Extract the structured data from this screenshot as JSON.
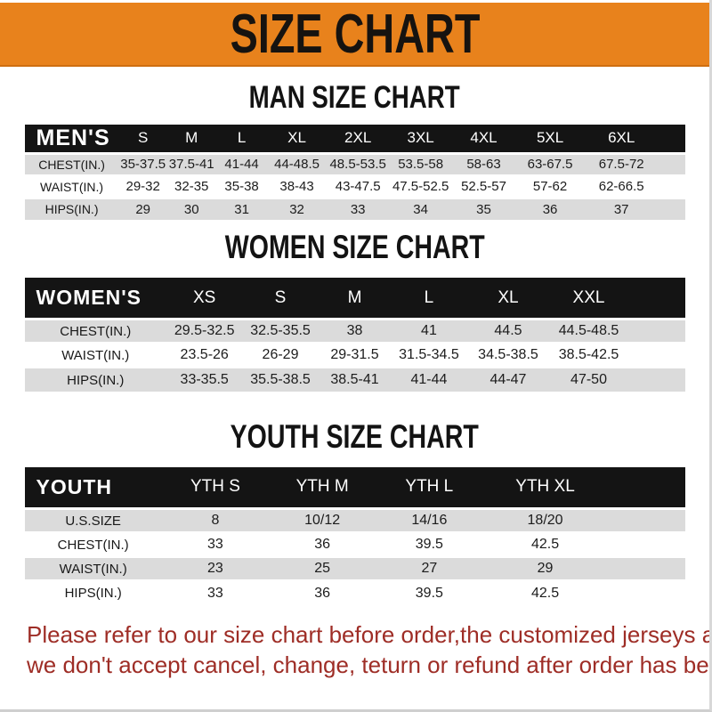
{
  "banner": {
    "title": "SIZE CHART",
    "bg_color": "#E8821C",
    "text_color": "#161310"
  },
  "chart_data": [
    {
      "type": "table",
      "title": "MAN SIZE CHART",
      "corner_label": "MEN'S",
      "columns": [
        "S",
        "M",
        "L",
        "XL",
        "2XL",
        "3XL",
        "4XL",
        "5XL",
        "6XL"
      ],
      "rows": [
        {
          "label": "CHEST(IN.)",
          "values": [
            "35-37.5",
            "37.5-41",
            "41-44",
            "44-48.5",
            "48.5-53.5",
            "53.5-58",
            "58-63",
            "63-67.5",
            "67.5-72"
          ]
        },
        {
          "label": "WAIST(IN.)",
          "values": [
            "29-32",
            "32-35",
            "35-38",
            "38-43",
            "43-47.5",
            "47.5-52.5",
            "52.5-57",
            "57-62",
            "62-66.5"
          ]
        },
        {
          "label": "HIPS(IN.)",
          "values": [
            "29",
            "30",
            "31",
            "32",
            "33",
            "34",
            "35",
            "36",
            "37"
          ]
        }
      ],
      "layout": {
        "col_widths_pct": [
          14.3,
          7.3,
          7.4,
          7.8,
          8.9,
          9.6,
          9.4,
          9.7,
          10.4,
          11.2,
          4.0
        ],
        "header_bg": "#141414",
        "row_alt_bg": "#DBDBDB"
      }
    },
    {
      "type": "table",
      "title": "WOMEN SIZE CHART",
      "corner_label": "WOMEN'S",
      "columns": [
        "XS",
        "S",
        "M",
        "L",
        "XL",
        "XXL"
      ],
      "rows": [
        {
          "label": "CHEST(IN.)",
          "values": [
            "29.5-32.5",
            "32.5-35.5",
            "38",
            "41",
            "44.5",
            "44.5-48.5"
          ]
        },
        {
          "label": "WAIST(IN.)",
          "values": [
            "23.5-26",
            "26-29",
            "29-31.5",
            "31.5-34.5",
            "34.5-38.5",
            "38.5-42.5"
          ]
        },
        {
          "label": "HIPS(IN.)",
          "values": [
            "33-35.5",
            "35.5-38.5",
            "38.5-41",
            "41-44",
            "44-47",
            "47-50"
          ]
        }
      ],
      "layout": {
        "col_widths_pct": [
          21.5,
          11.5,
          11.5,
          11.0,
          11.5,
          12.5,
          11.9,
          8.6
        ],
        "header_bg": "#141414",
        "row_alt_bg": "#DBDBDB"
      }
    },
    {
      "type": "table",
      "title": "YOUTH SIZE CHART",
      "corner_label": "YOUTH",
      "columns": [
        "YTH S",
        "YTH M",
        "YTH L",
        "YTH XL"
      ],
      "rows": [
        {
          "label": "U.S.SIZE",
          "values": [
            "8",
            "10/12",
            "14/16",
            "18/20"
          ]
        },
        {
          "label": "CHEST(IN.)",
          "values": [
            "33",
            "36",
            "39.5",
            "42.5"
          ]
        },
        {
          "label": "WAIST(IN.)",
          "values": [
            "23",
            "25",
            "27",
            "29"
          ]
        },
        {
          "label": "HIPS(IN.)",
          "values": [
            "33",
            "36",
            "39.5",
            "42.5"
          ]
        }
      ],
      "layout": {
        "col_widths_pct": [
          20.8,
          16.2,
          16.2,
          16.2,
          18.9,
          11.7
        ],
        "header_bg": "#141414",
        "row_alt_bg": "#DBDBDB"
      }
    }
  ],
  "footer": {
    "line1": "Please refer to our size chart before order,the customized jerseys are special products,",
    "line2": "we don't accept cancel, change, teturn or refund after order has been placed!",
    "text_color": "#9E2D26"
  },
  "colors": {
    "banner_orange": "#E8821C",
    "banner_edge": "#CE6E10",
    "header_bar_black": "#141414",
    "row_gray": "#DBDBDB",
    "row_white": "#FFFFFF",
    "notice_red": "#9E2D26"
  }
}
